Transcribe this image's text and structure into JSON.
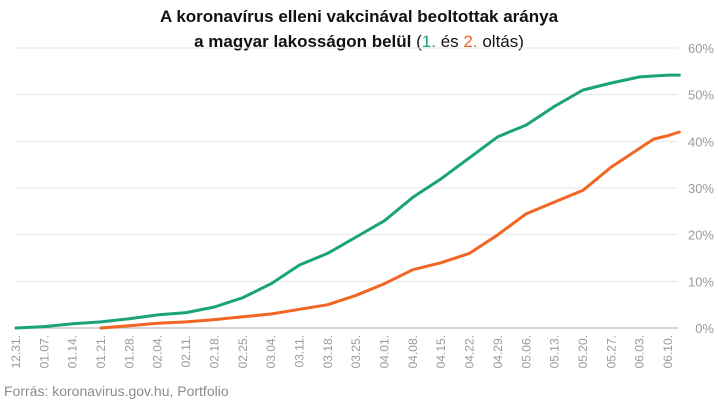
{
  "chart_data": {
    "type": "line",
    "title_line1": "A koronavírus elleni vakcinával beoltottak aránya",
    "title_line2_main": "a magyar lakosságon belül",
    "title_open": "(",
    "title_series1": "1.",
    "title_and": "és",
    "title_series2": "2.",
    "title_suffix": "oltás)",
    "x_tick_labels": [
      "12.31.",
      "01.07.",
      "01.14.",
      "01.21.",
      "01.28.",
      "02.04.",
      "02.11.",
      "02.18.",
      "02.25.",
      "03.04.",
      "03.11.",
      "03.18.",
      "03.25.",
      "04.01.",
      "04.08.",
      "04.15.",
      "04.22.",
      "04.29.",
      "05.06.",
      "05.13.",
      "05.20.",
      "05.27.",
      "06.03.",
      "06.10."
    ],
    "y_tick_labels": [
      "0%",
      "10%",
      "20%",
      "30%",
      "40%",
      "50%",
      "60%"
    ],
    "ylim": [
      0,
      60
    ],
    "y_axis_side": "right",
    "grid": "horizontal",
    "series": [
      {
        "color": "#1aa37a",
        "x": [
          0,
          1,
          2,
          3,
          4,
          5,
          6,
          7,
          8,
          9,
          10,
          11,
          12,
          13,
          14,
          15,
          16,
          17,
          18,
          19,
          20,
          21,
          22,
          23,
          23.4
        ],
        "values": [
          0,
          0.3,
          0.9,
          1.3,
          2.0,
          2.8,
          3.3,
          4.5,
          6.5,
          9.5,
          13.5,
          16.0,
          19.5,
          23.0,
          28.0,
          32.0,
          36.5,
          41.0,
          43.5,
          47.5,
          51.0,
          52.5,
          53.8,
          54.2,
          54.2
        ]
      },
      {
        "color": "#f26522",
        "x": [
          3,
          4,
          5,
          6,
          7,
          8,
          9,
          10,
          11,
          12,
          13,
          14,
          15,
          16,
          17,
          18,
          19,
          20,
          21,
          22,
          22.5,
          23,
          23.4
        ],
        "values": [
          0,
          0.5,
          1.0,
          1.3,
          1.8,
          2.4,
          3.0,
          4.0,
          5.0,
          7.0,
          9.5,
          12.5,
          14.0,
          16.0,
          20.0,
          24.5,
          27.0,
          29.5,
          34.5,
          38.5,
          40.5,
          41.2,
          42.0
        ]
      }
    ]
  },
  "source": "Forrás: koronavirus.gov.hu, Portfolio"
}
